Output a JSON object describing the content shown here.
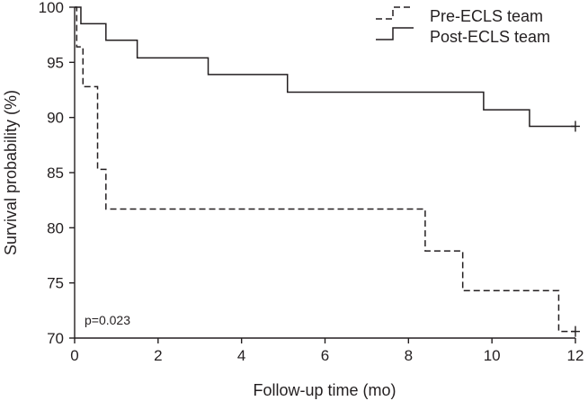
{
  "chart_data": {
    "type": "line",
    "step": true,
    "title": "",
    "xlabel": "Follow-up time (mo)",
    "ylabel": "Survival probability (%)",
    "xlim": [
      0,
      12
    ],
    "ylim": [
      70,
      100
    ],
    "xticks": [
      0,
      2,
      4,
      6,
      8,
      10,
      12
    ],
    "yticks": [
      70,
      75,
      80,
      85,
      90,
      95,
      100
    ],
    "grid": false,
    "legend_position": "top-right",
    "annotation": "p=0.023",
    "series": [
      {
        "name": "Pre-ECLS team",
        "line_style": "dashed",
        "x": [
          0,
          0.05,
          0.2,
          0.55,
          0.75,
          8.4,
          9.3,
          11.6,
          12
        ],
        "y": [
          100,
          96.4,
          92.8,
          85.3,
          81.7,
          77.9,
          74.3,
          70.6,
          70.6
        ],
        "censor_x": [
          12
        ],
        "censor_y": [
          70.6
        ]
      },
      {
        "name": "Post-ECLS team",
        "line_style": "solid",
        "x": [
          0,
          0.15,
          0.75,
          1.5,
          3.2,
          5.1,
          9.8,
          10.9,
          12
        ],
        "y": [
          100,
          98.5,
          97.0,
          95.4,
          93.9,
          92.3,
          90.7,
          89.2,
          89.2
        ],
        "censor_x": [
          12
        ],
        "censor_y": [
          89.2
        ]
      }
    ]
  }
}
